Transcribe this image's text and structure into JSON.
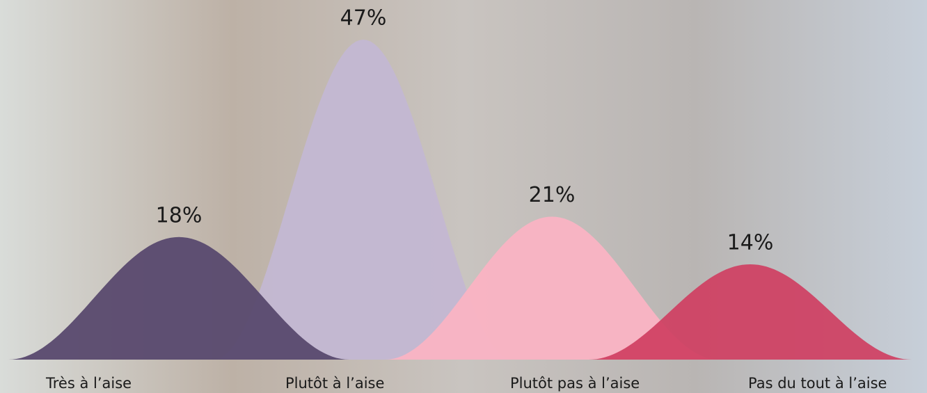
{
  "chart_data": {
    "type": "bell",
    "categories": [
      "Très à l’aise",
      "Plutôt à l’aise",
      "Plutôt pas à l’aise",
      "Pas du tout à l’aise"
    ],
    "values": [
      18,
      47,
      21,
      14
    ],
    "value_labels": [
      "18%",
      "47%",
      "21%",
      "14%"
    ],
    "colors": [
      "#5b4b6f",
      "#c3b8d2",
      "#f9b4c3",
      "#cf3f62"
    ]
  }
}
